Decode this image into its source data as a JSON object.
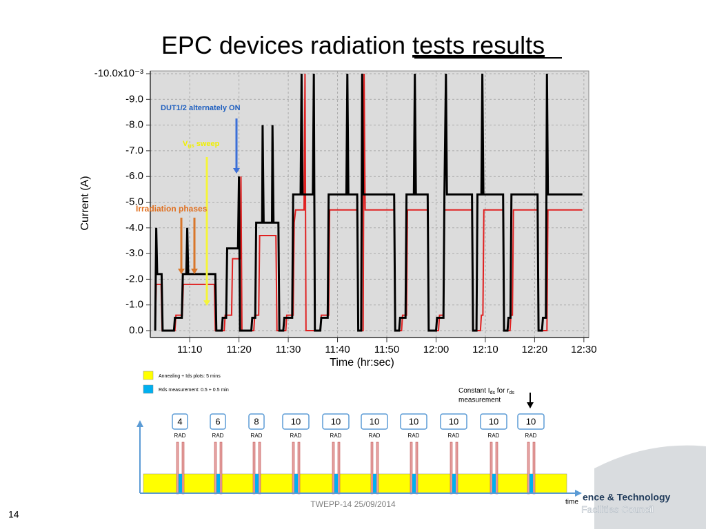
{
  "slide": {
    "title_plain": "EPC devices radiation",
    "title_underlined": "tests results",
    "footer": "TWEPP-14 25/09/2014",
    "page_number": "14",
    "logo_line1": "ence & Technology",
    "logo_line2": "Facilities Council"
  },
  "chart_data": {
    "type": "line",
    "x_label": "Time (hr:sec)",
    "y_label": "Current (A)",
    "xlim": [
      2,
      91
    ],
    "xticks": [
      {
        "value": 10,
        "label": "11:10"
      },
      {
        "value": 20,
        "label": "11:20"
      },
      {
        "value": 30,
        "label": "11:30"
      },
      {
        "value": 40,
        "label": "11:40"
      },
      {
        "value": 50,
        "label": "11:50"
      },
      {
        "value": 60,
        "label": "12:00"
      },
      {
        "value": 70,
        "label": "12:10"
      },
      {
        "value": 80,
        "label": "12:20"
      },
      {
        "value": 90,
        "label": "12:30"
      }
    ],
    "ylim": [
      0,
      -10
    ],
    "yticks": [
      {
        "value": 0,
        "label": "0.0"
      },
      {
        "value": -1,
        "label": "-1.0"
      },
      {
        "value": -2,
        "label": "-2.0"
      },
      {
        "value": -3,
        "label": "-3.0"
      },
      {
        "value": -4,
        "label": "-4.0"
      },
      {
        "value": -5,
        "label": "-5.0"
      },
      {
        "value": -6,
        "label": "-6.0"
      },
      {
        "value": -7,
        "label": "-7.0"
      },
      {
        "value": -8,
        "label": "-8.0"
      },
      {
        "value": -9,
        "label": "-9.0"
      },
      {
        "value": -10,
        "label": "-10.0x10⁻³"
      }
    ],
    "grid": true,
    "annotations": [
      "DUT1/2 alternately ON",
      "Irradiation phases"
    ],
    "sweep_label": [
      "V",
      "gs",
      " sweep"
    ],
    "series": [
      {
        "color": "#e02020",
        "x": [
          3.0,
          3.2,
          4.2,
          4.4,
          7.0,
          7.2,
          8.5,
          8.7,
          15.0,
          15.2,
          17.0,
          17.2,
          18.5,
          18.7,
          20.3,
          20.4,
          20.6,
          23.0,
          23.2,
          24.0,
          24.2,
          27.5,
          27.7,
          29.5,
          29.7,
          31.0,
          31.2,
          31.5,
          33.2,
          33.4,
          33.6,
          36.5,
          36.7,
          38.2,
          38.4,
          44.0,
          44.2,
          45.2,
          45.4,
          45.6,
          51.5,
          51.7,
          53.0,
          53.2,
          54.0,
          54.2,
          58.3,
          58.5,
          60.5,
          60.7,
          61.5,
          61.7,
          67.3,
          67.5,
          69.0,
          69.2,
          69.5,
          69.7,
          73.6,
          73.8,
          75.0,
          75.2,
          75.5,
          75.7,
          80.6,
          80.8,
          82.5,
          82.7,
          89.7
        ],
        "values": [
          0,
          -1.8,
          -1.8,
          0,
          0,
          -0.6,
          -0.6,
          -1.8,
          -1.8,
          0,
          0,
          -0.6,
          -0.6,
          -2.8,
          -2.8,
          -6.0,
          0,
          0,
          -0.6,
          -0.6,
          -3.7,
          -3.7,
          0,
          0,
          -0.6,
          -0.6,
          -4.2,
          -4.7,
          -4.7,
          -10.0,
          0,
          0,
          -0.6,
          -0.6,
          -4.7,
          -4.7,
          0,
          0,
          -10.0,
          -4.7,
          -4.7,
          0,
          0,
          -0.6,
          -0.6,
          -4.7,
          -4.7,
          0,
          0,
          -0.6,
          -0.6,
          -4.7,
          -4.7,
          0,
          0,
          -0.6,
          -0.6,
          -4.7,
          -4.7,
          0,
          0,
          -0.6,
          -0.6,
          -4.7,
          -4.7,
          0,
          0,
          -4.7,
          -4.7
        ]
      },
      {
        "color": "#000000",
        "x": [
          3.0,
          3.2,
          3.4,
          4.3,
          4.5,
          6.8,
          7.0,
          8.4,
          8.6,
          9.3,
          9.5,
          9.7,
          15.2,
          15.4,
          16.5,
          16.7,
          17.4,
          17.6,
          19.8,
          20.0,
          20.2,
          22.5,
          22.7,
          23.3,
          23.5,
          24.7,
          24.8,
          25.0,
          26.7,
          26.8,
          27.0,
          28.0,
          28.2,
          29.0,
          29.2,
          30.8,
          31.0,
          32.5,
          32.7,
          32.9,
          35.0,
          35.2,
          35.4,
          36.5,
          36.7,
          38.0,
          38.2,
          41.8,
          42.0,
          42.2,
          44.0,
          44.2,
          44.8,
          45.0,
          45.2,
          51.5,
          51.7,
          52.5,
          52.7,
          53.8,
          54.0,
          55.5,
          55.7,
          55.9,
          58.3,
          58.5,
          60.0,
          60.2,
          61.5,
          61.7,
          62.0,
          62.2,
          67.3,
          67.5,
          68.2,
          68.4,
          69.2,
          69.4,
          69.6,
          73.6,
          73.8,
          74.5,
          74.7,
          75.1,
          75.3,
          80.6,
          80.8,
          81.5,
          81.7,
          82.3,
          82.5,
          82.7,
          89.7
        ],
        "values": [
          0,
          -4.0,
          -2.2,
          -2.2,
          0,
          0,
          -0.5,
          -0.5,
          -2.2,
          -2.2,
          -4.0,
          -2.2,
          -2.2,
          0,
          0,
          -0.5,
          -0.5,
          -3.2,
          -3.2,
          -6.0,
          0,
          0,
          -0.5,
          -0.5,
          -4.2,
          -4.2,
          -8.0,
          -4.2,
          -4.2,
          -8.0,
          -4.2,
          -4.2,
          0,
          0,
          -0.5,
          -0.5,
          -5.3,
          -5.3,
          -10.0,
          -5.3,
          -5.3,
          -10.0,
          0,
          0,
          -0.5,
          -0.5,
          -5.3,
          -5.3,
          -10.0,
          -5.3,
          -5.3,
          0,
          0,
          -10.0,
          -5.3,
          -5.3,
          0,
          0,
          -0.5,
          -0.5,
          -5.3,
          -5.3,
          -10.0,
          -5.3,
          -5.3,
          0,
          0,
          -0.5,
          -0.5,
          -5.3,
          -10.0,
          -5.3,
          -5.3,
          0,
          0,
          -5.3,
          -5.3,
          -10.0,
          -5.3,
          -5.3,
          0,
          0,
          -0.5,
          -0.5,
          -5.3,
          -5.3,
          0,
          0,
          -0.5,
          -0.5,
          -10.0,
          -5.3,
          -5.3
        ]
      }
    ]
  },
  "timeline": {
    "legend": [
      {
        "text": "Annealing  + Ids plots: 5 mins",
        "color": "#ffff00"
      },
      {
        "text": "Rds measurement: 0.5 + 0.5 min",
        "color": "#00b0f0"
      }
    ],
    "note_parts": [
      "Constant I",
      "ds",
      " for r",
      "ds"
    ],
    "note_line2": "measurement",
    "doses": [
      4,
      6,
      8,
      10,
      10,
      10,
      10,
      10,
      10,
      10
    ],
    "rad_labels": [
      "RAD",
      "RAD",
      "RAD",
      "RAD",
      "RAD",
      "RAD",
      "RAD",
      "RAD",
      "RAD",
      "RAD"
    ],
    "axis_label": "time"
  }
}
